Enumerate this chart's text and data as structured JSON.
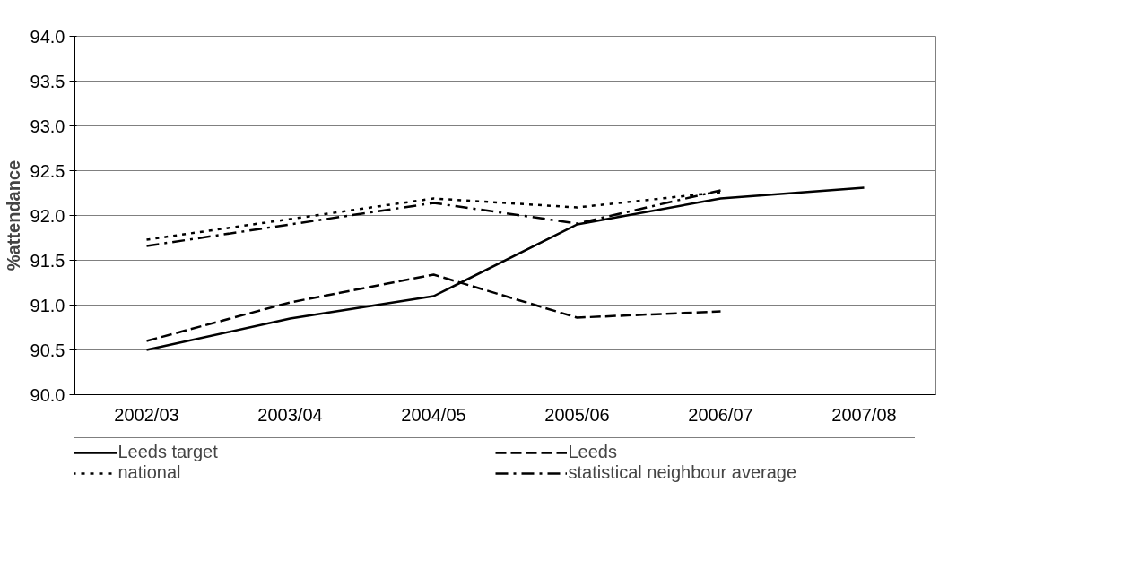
{
  "chart_data": {
    "type": "line",
    "ylabel": "%attendance",
    "categories": [
      "2002/03",
      "2003/04",
      "2004/05",
      "2005/06",
      "2006/07",
      "2007/08"
    ],
    "series": [
      {
        "name": "Leeds target",
        "color": "#000000",
        "line_style": "solid",
        "values": [
          90.5,
          90.85,
          91.1,
          91.9,
          92.19,
          92.31
        ]
      },
      {
        "name": "Leeds",
        "color": "#000000",
        "line_style": "dashed",
        "values": [
          90.6,
          91.03,
          91.34,
          90.86,
          90.93,
          null
        ]
      },
      {
        "name": "national",
        "color": "#000000",
        "line_style": "dotted",
        "values": [
          91.73,
          91.96,
          92.19,
          92.09,
          92.26,
          null
        ]
      },
      {
        "name": "statistical neighbour average",
        "color": "#000000",
        "line_style": "dashdot",
        "values": [
          91.66,
          91.9,
          92.14,
          91.91,
          92.28,
          null
        ]
      }
    ],
    "ylim": [
      90.0,
      94.0
    ],
    "yticks": [
      {
        "value": 90,
        "label": "90.0"
      },
      {
        "value": 90.5,
        "label": "90.5"
      },
      {
        "value": 91,
        "label": "91.0"
      },
      {
        "value": 91.5,
        "label": "91.5"
      },
      {
        "value": 92,
        "label": "92.0"
      },
      {
        "value": 92.5,
        "label": "92.5"
      },
      {
        "value": 93,
        "label": "93.0"
      },
      {
        "value": 93.5,
        "label": "93.5"
      },
      {
        "value": 94,
        "label": "94.0"
      }
    ],
    "grid": "y",
    "legend": "bottom",
    "marker": "none"
  }
}
